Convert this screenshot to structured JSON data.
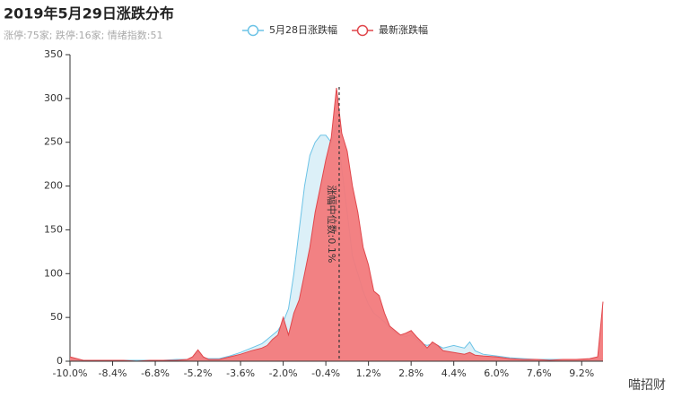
{
  "chart_data": {
    "type": "area",
    "title": "2019年5月29日涨跌分布",
    "subtitle": "涨停:75家; 跌停:16家; 情绪指数:51",
    "annotation": "涨幅中位数:0.1%",
    "median": 0.1,
    "watermark": "喵招财",
    "x": [
      -10,
      -9.5,
      -9,
      -8.5,
      -8,
      -7.5,
      -7,
      -6.5,
      -6,
      -5.6,
      -5.4,
      -5.2,
      -5.0,
      -4.8,
      -4.4,
      -4.0,
      -3.6,
      -3.2,
      -2.8,
      -2.6,
      -2.4,
      -2.2,
      -2.0,
      -1.8,
      -1.6,
      -1.4,
      -1.2,
      -1.0,
      -0.8,
      -0.6,
      -0.4,
      -0.2,
      0,
      0.2,
      0.4,
      0.6,
      0.8,
      1.0,
      1.2,
      1.4,
      1.6,
      1.8,
      2.0,
      2.2,
      2.4,
      2.6,
      2.8,
      3.0,
      3.2,
      3.4,
      3.6,
      3.8,
      4.0,
      4.4,
      4.8,
      5.0,
      5.2,
      5.5,
      6.0,
      6.5,
      7.0,
      7.5,
      8.0,
      8.5,
      9.0,
      9.5,
      9.8,
      10.0
    ],
    "series": [
      {
        "name": "5月28日涨跌幅",
        "color": "#6cc3e6",
        "fill": "#dcf0f8",
        "values": [
          3,
          1,
          1,
          1,
          1,
          1,
          1,
          1,
          2,
          2,
          4,
          10,
          4,
          3,
          3,
          6,
          10,
          15,
          20,
          25,
          30,
          35,
          45,
          60,
          100,
          150,
          200,
          235,
          250,
          258,
          258,
          250,
          270,
          220,
          170,
          120,
          100,
          80,
          65,
          55,
          50,
          45,
          38,
          33,
          30,
          28,
          30,
          25,
          20,
          18,
          20,
          18,
          15,
          18,
          15,
          22,
          12,
          8,
          6,
          4,
          3,
          2,
          2,
          2,
          2,
          2,
          2,
          3
        ]
      },
      {
        "name": "最新涨跌幅",
        "color": "#e0474c",
        "fill": "#f27a7c",
        "values": [
          5,
          1,
          1,
          1,
          1,
          0,
          1,
          1,
          1,
          2,
          5,
          13,
          5,
          2,
          2,
          5,
          8,
          12,
          15,
          18,
          25,
          30,
          50,
          30,
          55,
          70,
          100,
          130,
          170,
          200,
          230,
          255,
          312,
          260,
          240,
          200,
          170,
          130,
          110,
          80,
          75,
          55,
          40,
          35,
          30,
          32,
          35,
          28,
          22,
          15,
          22,
          18,
          12,
          10,
          8,
          10,
          7,
          6,
          5,
          3,
          2,
          2,
          1,
          2,
          2,
          3,
          5,
          68
        ]
      }
    ],
    "xlim": [
      -10,
      10
    ],
    "xticks": [
      {
        "value": -10,
        "label": "-10.0%"
      },
      {
        "value": -8.4,
        "label": "-8.4%"
      },
      {
        "value": -6.8,
        "label": "-6.8%"
      },
      {
        "value": -5.2,
        "label": "-5.2%"
      },
      {
        "value": -3.6,
        "label": "-3.6%"
      },
      {
        "value": -2.0,
        "label": "-2.0%"
      },
      {
        "value": -0.4,
        "label": "-0.4%"
      },
      {
        "value": 1.2,
        "label": "1.2%"
      },
      {
        "value": 2.8,
        "label": "2.8%"
      },
      {
        "value": 4.4,
        "label": "4.4%"
      },
      {
        "value": 6.0,
        "label": "6.0%"
      },
      {
        "value": 7.6,
        "label": "7.6%"
      },
      {
        "value": 9.2,
        "label": "9.2%"
      }
    ],
    "ylim": [
      0,
      350
    ],
    "yticks": [
      0,
      50,
      100,
      150,
      200,
      250,
      300,
      350
    ],
    "grid": false
  }
}
